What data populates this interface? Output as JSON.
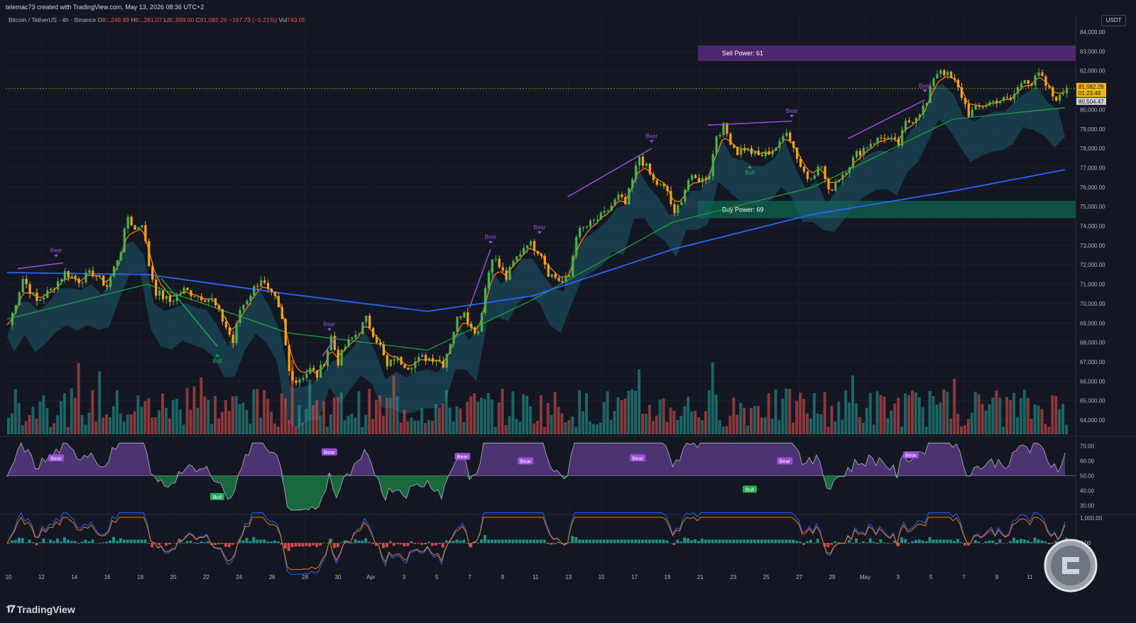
{
  "header": {
    "creator": "telemac73 created with TradingView.com, May 13, 2026 08:36 UTC+2",
    "symbol": "Bitcoin / TetherUS · 4h · Binance",
    "o_label": "O",
    "o_value": "81,249.99",
    "h_label": "H",
    "h_value": "81,281.07",
    "l_label": "L",
    "l_value": "80,999.00",
    "c_label": "C",
    "c_value": "81,082.26",
    "change": "−167.73 (−0.21%)",
    "vol_label": "Vol",
    "vol_value": "743.05"
  },
  "currency": "USDT",
  "branding": {
    "logo": "TradingView"
  },
  "colors": {
    "background": "#131722",
    "bull_candle": "#4caf50",
    "bear_candle": "#f7a21b",
    "vol_up": "#26a69a",
    "vol_down": "#ef5350",
    "ema_fast": "#f57c00",
    "ema_mid": "#1b9e3e",
    "ema_slow": "#2962ff",
    "cloud": "#1e5a6b",
    "sell_zone": "#5b2c83",
    "buy_zone": "#0e5a48",
    "bear_label": "#9c4dd8",
    "bull_label": "#22ab55"
  },
  "price_labels": {
    "current": "81,082.26",
    "countdown": "01:23:48",
    "line": "80,504.47"
  },
  "zones": {
    "sell": {
      "label": "Sell Power: 61",
      "low": 82500,
      "high": 83300
    },
    "buy": {
      "label": "Buy Power: 69",
      "low": 74400,
      "high": 75300
    }
  },
  "signals": {
    "bear": "Bear",
    "bull": "Bull"
  },
  "chart_data": [
    {
      "type": "candlestick",
      "y_ticks": [
        "84,000.00",
        "83,000.00",
        "82,000.00",
        "81,000.00",
        "80,000.00",
        "79,000.00",
        "78,000.00",
        "77,000.00",
        "76,000.00",
        "75,000.00",
        "74,000.00",
        "73,000.00",
        "72,000.00",
        "71,000.00",
        "70,000.00",
        "69,000.00",
        "68,000.00",
        "67,000.00",
        "66,000.00",
        "65,000.00",
        "64,000.00"
      ],
      "ylim": [
        63500,
        84500
      ],
      "x_ticks": [
        "10",
        "12",
        "14",
        "16",
        "18",
        "20",
        "22",
        "24",
        "26",
        "28",
        "30",
        "Apr",
        "3",
        "5",
        "7",
        "9",
        "11",
        "13",
        "15",
        "17",
        "19",
        "21",
        "23",
        "25",
        "27",
        "29",
        "May",
        "3",
        "5",
        "7",
        "9",
        "11"
      ],
      "close_path": [
        [
          0,
          68900
        ],
        [
          4,
          71300
        ],
        [
          8,
          70100
        ],
        [
          12,
          70700
        ],
        [
          16,
          71600
        ],
        [
          20,
          71200
        ],
        [
          24,
          71600
        ],
        [
          28,
          70900
        ],
        [
          32,
          72800
        ],
        [
          34,
          74500
        ],
        [
          36,
          73800
        ],
        [
          38,
          74200
        ],
        [
          40,
          72000
        ],
        [
          42,
          70600
        ],
        [
          46,
          70100
        ],
        [
          50,
          70700
        ],
        [
          54,
          70400
        ],
        [
          58,
          70200
        ],
        [
          62,
          68800
        ],
        [
          64,
          68000
        ],
        [
          66,
          69700
        ],
        [
          70,
          70800
        ],
        [
          72,
          71300
        ],
        [
          74,
          70600
        ],
        [
          76,
          70200
        ],
        [
          78,
          69100
        ],
        [
          80,
          66500
        ],
        [
          82,
          66000
        ],
        [
          86,
          66600
        ],
        [
          88,
          66300
        ],
        [
          90,
          67000
        ],
        [
          92,
          68300
        ],
        [
          94,
          67000
        ],
        [
          96,
          67800
        ],
        [
          100,
          68600
        ],
        [
          102,
          69200
        ],
        [
          106,
          67800
        ],
        [
          108,
          66700
        ],
        [
          110,
          67200
        ],
        [
          114,
          66800
        ],
        [
          118,
          67200
        ],
        [
          122,
          67200
        ],
        [
          124,
          66900
        ],
        [
          128,
          69200
        ],
        [
          130,
          69700
        ],
        [
          132,
          68700
        ],
        [
          134,
          68600
        ],
        [
          136,
          70800
        ],
        [
          138,
          72500
        ],
        [
          142,
          71300
        ],
        [
          144,
          72100
        ],
        [
          148,
          73200
        ],
        [
          152,
          72600
        ],
        [
          154,
          71600
        ],
        [
          158,
          71100
        ],
        [
          160,
          71400
        ],
        [
          162,
          73600
        ],
        [
          166,
          74100
        ],
        [
          170,
          74600
        ],
        [
          174,
          75500
        ],
        [
          176,
          75100
        ],
        [
          180,
          77600
        ],
        [
          182,
          77000
        ],
        [
          184,
          76300
        ],
        [
          188,
          75800
        ],
        [
          190,
          74500
        ],
        [
          194,
          76400
        ],
        [
          198,
          76400
        ],
        [
          200,
          76700
        ],
        [
          202,
          78700
        ],
        [
          204,
          79100
        ],
        [
          206,
          78400
        ],
        [
          208,
          77800
        ],
        [
          210,
          78000
        ],
        [
          214,
          77600
        ],
        [
          216,
          77700
        ],
        [
          220,
          78200
        ],
        [
          222,
          79000
        ],
        [
          226,
          77100
        ],
        [
          228,
          76500
        ],
        [
          232,
          77100
        ],
        [
          234,
          75700
        ],
        [
          236,
          76300
        ],
        [
          238,
          76700
        ],
        [
          242,
          77700
        ],
        [
          246,
          78300
        ],
        [
          250,
          78600
        ],
        [
          254,
          78200
        ],
        [
          256,
          79300
        ],
        [
          258,
          79500
        ],
        [
          262,
          80300
        ],
        [
          264,
          81700
        ],
        [
          266,
          82100
        ],
        [
          270,
          81400
        ],
        [
          272,
          80700
        ],
        [
          274,
          79800
        ],
        [
          278,
          80200
        ],
        [
          282,
          80500
        ],
        [
          286,
          80500
        ],
        [
          290,
          81700
        ],
        [
          292,
          81300
        ],
        [
          294,
          81800
        ],
        [
          298,
          80700
        ],
        [
          300,
          80600
        ],
        [
          302,
          81200
        ]
      ],
      "emas": {
        "fast": "follows close",
        "mid_points": [
          [
            0,
            69200
          ],
          [
            40,
            71000
          ],
          [
            80,
            68500
          ],
          [
            120,
            67600
          ],
          [
            150,
            70200
          ],
          [
            190,
            74200
          ],
          [
            230,
            76000
          ],
          [
            270,
            79500
          ],
          [
            302,
            80100
          ]
        ],
        "slow_points": [
          [
            0,
            71600
          ],
          [
            40,
            71500
          ],
          [
            80,
            70500
          ],
          [
            120,
            69600
          ],
          [
            150,
            70400
          ],
          [
            190,
            72800
          ],
          [
            230,
            74600
          ],
          [
            270,
            75800
          ],
          [
            302,
            76900
          ]
        ]
      },
      "volume_note": "volume histogram at bottom of main pane"
    },
    {
      "type": "area",
      "name": "oscillator",
      "y_ticks": [
        "70.00",
        "60.00",
        "50.00",
        "40.00",
        "30.00"
      ],
      "ylim": [
        25,
        75
      ],
      "midline": 50
    },
    {
      "type": "bar",
      "name": "macd",
      "y_ticks": [
        "1,000.00",
        "0.00"
      ],
      "ylim": [
        -1500,
        1200
      ]
    }
  ]
}
